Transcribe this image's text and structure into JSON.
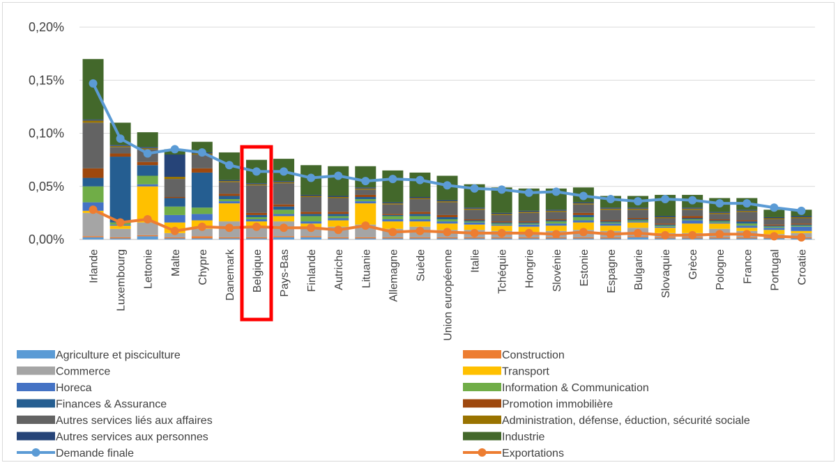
{
  "chart_data": {
    "type": "bar",
    "subtype": "stacked bar with line overlay",
    "title": "",
    "xlabel": "",
    "ylabel": "",
    "ylim": [
      0,
      0.2
    ],
    "yticks": [
      "0,00%",
      "0,05%",
      "0,10%",
      "0,15%",
      "0,20%"
    ],
    "grid": true,
    "legend_position": "bottom",
    "highlight": {
      "category": "Belgique",
      "color": "#ff0000"
    },
    "categories": [
      "Irlande",
      "Luxembourg",
      "Lettonie",
      "Malte",
      "Chypre",
      "Danemark",
      "Belgique",
      "Pays-Bas",
      "Finlande",
      "Autriche",
      "Lituanie",
      "Allemagne",
      "Suède",
      "Union européenne",
      "Italie",
      "Tchéquie",
      "Hongrie",
      "Slovénie",
      "Estonie",
      "Espagne",
      "Bulgarie",
      "Slovaquie",
      "Grèce",
      "Pologne",
      "France",
      "Portugal",
      "Croatie"
    ],
    "series": [
      {
        "name": "Agriculture et pisciculture",
        "kind": "bar",
        "color": "#5b9bd5",
        "values": [
          0.002,
          0.001,
          0.003,
          0.001,
          0.001,
          0.001,
          0.001,
          0.002,
          0.002,
          0.001,
          0.001,
          0.001,
          0.001,
          0.001,
          0.001,
          0.001,
          0.001,
          0.001,
          0.001,
          0.001,
          0.002,
          0.001,
          0.001,
          0.001,
          0.001,
          0.001,
          0.001
        ]
      },
      {
        "name": "Construction",
        "kind": "bar",
        "color": "#ed7d31",
        "values": [
          0.001,
          0.001,
          0.001,
          0.001,
          0.002,
          0.001,
          0.001,
          0.001,
          0.001,
          0.001,
          0.001,
          0.001,
          0.001,
          0.001,
          0.001,
          0.001,
          0.001,
          0.001,
          0.001,
          0.001,
          0.001,
          0.001,
          0.001,
          0.001,
          0.001,
          0.001,
          0.001
        ]
      },
      {
        "name": "Commerce",
        "kind": "bar",
        "color": "#a5a5a5",
        "values": [
          0.022,
          0.008,
          0.012,
          0.004,
          0.007,
          0.015,
          0.01,
          0.014,
          0.008,
          0.01,
          0.012,
          0.008,
          0.01,
          0.007,
          0.007,
          0.006,
          0.005,
          0.006,
          0.007,
          0.006,
          0.008,
          0.004,
          0.004,
          0.008,
          0.006,
          0.003,
          0.004
        ]
      },
      {
        "name": "Transport",
        "kind": "bar",
        "color": "#ffc000",
        "values": [
          0.002,
          0.003,
          0.034,
          0.01,
          0.008,
          0.017,
          0.005,
          0.005,
          0.004,
          0.006,
          0.02,
          0.007,
          0.005,
          0.006,
          0.005,
          0.005,
          0.005,
          0.005,
          0.007,
          0.005,
          0.005,
          0.005,
          0.009,
          0.005,
          0.003,
          0.004,
          0.002
        ]
      },
      {
        "name": "Horeca",
        "kind": "bar",
        "color": "#4472c4",
        "values": [
          0.008,
          0.001,
          0.002,
          0.007,
          0.006,
          0.002,
          0.002,
          0.002,
          0.002,
          0.002,
          0.002,
          0.002,
          0.002,
          0.002,
          0.002,
          0.001,
          0.002,
          0.002,
          0.002,
          0.002,
          0.001,
          0.001,
          0.003,
          0.001,
          0.002,
          0.002,
          0.004
        ]
      },
      {
        "name": "Information & Communication",
        "kind": "bar",
        "color": "#70ad47",
        "values": [
          0.015,
          0.002,
          0.008,
          0.008,
          0.006,
          0.002,
          0.002,
          0.004,
          0.005,
          0.002,
          0.002,
          0.003,
          0.003,
          0.002,
          0.001,
          0.001,
          0.001,
          0.002,
          0.003,
          0.001,
          0.001,
          0.001,
          0.001,
          0.001,
          0.002,
          0.001,
          0.001
        ]
      },
      {
        "name": "Finances & Assurance",
        "kind": "bar",
        "color": "#255e91",
        "values": [
          0.008,
          0.062,
          0.01,
          0.008,
          0.033,
          0.003,
          0.002,
          0.003,
          0.002,
          0.002,
          0.002,
          0.001,
          0.002,
          0.002,
          0.001,
          0.001,
          0.001,
          0.001,
          0.002,
          0.001,
          0.001,
          0.001,
          0.001,
          0.001,
          0.002,
          0.001,
          0.001
        ]
      },
      {
        "name": "Promotion immobilière",
        "kind": "bar",
        "color": "#9e480e",
        "values": [
          0.009,
          0.003,
          0.003,
          0.001,
          0.004,
          0.002,
          0.002,
          0.002,
          0.002,
          0.002,
          0.002,
          0.001,
          0.002,
          0.002,
          0.001,
          0.001,
          0.001,
          0.001,
          0.002,
          0.001,
          0.001,
          0.001,
          0.002,
          0.001,
          0.001,
          0.001,
          0.001
        ]
      },
      {
        "name": "Autres services liés aux affaires",
        "kind": "bar",
        "color": "#636363",
        "values": [
          0.043,
          0.006,
          0.012,
          0.017,
          0.013,
          0.011,
          0.026,
          0.02,
          0.014,
          0.013,
          0.005,
          0.009,
          0.012,
          0.012,
          0.009,
          0.006,
          0.008,
          0.007,
          0.008,
          0.01,
          0.008,
          0.005,
          0.006,
          0.005,
          0.008,
          0.005,
          0.005
        ]
      },
      {
        "name": "Administration, défense, éduction, sécurité sociale",
        "kind": "bar",
        "color": "#997300",
        "values": [
          0.002,
          0.001,
          0.001,
          0.002,
          0.001,
          0.001,
          0.001,
          0.001,
          0.001,
          0.001,
          0.001,
          0.001,
          0.001,
          0.001,
          0.001,
          0.001,
          0.001,
          0.001,
          0.001,
          0.001,
          0.001,
          0.001,
          0.001,
          0.001,
          0.001,
          0.001,
          0.001
        ]
      },
      {
        "name": "Autres services aux personnes",
        "kind": "bar",
        "color": "#264478",
        "values": [
          0.001,
          0.001,
          0.001,
          0.021,
          0.001,
          0.001,
          0.001,
          0.001,
          0.001,
          0.001,
          0.001,
          0.001,
          0.001,
          0.001,
          0.001,
          0.001,
          0.001,
          0.001,
          0.001,
          0.001,
          0.001,
          0.001,
          0.001,
          0.001,
          0.001,
          0.001,
          0.001
        ]
      },
      {
        "name": "Industrie",
        "kind": "bar",
        "color": "#43682b",
        "values": [
          0.057,
          0.021,
          0.014,
          0.005,
          0.01,
          0.026,
          0.022,
          0.021,
          0.028,
          0.028,
          0.02,
          0.03,
          0.023,
          0.023,
          0.022,
          0.024,
          0.021,
          0.02,
          0.014,
          0.011,
          0.011,
          0.02,
          0.012,
          0.013,
          0.011,
          0.007,
          0.006
        ]
      },
      {
        "name": "Demande finale",
        "kind": "line",
        "color": "#5b9bd5",
        "values": [
          0.147,
          0.095,
          0.081,
          0.085,
          0.082,
          0.07,
          0.064,
          0.064,
          0.058,
          0.06,
          0.055,
          0.057,
          0.056,
          0.051,
          0.048,
          0.047,
          0.044,
          0.045,
          0.041,
          0.038,
          0.036,
          0.038,
          0.037,
          0.034,
          0.034,
          0.03,
          0.027
        ]
      },
      {
        "name": "Exportations",
        "kind": "line",
        "color": "#ed7d31",
        "values": [
          0.028,
          0.016,
          0.019,
          0.008,
          0.012,
          0.011,
          0.012,
          0.011,
          0.011,
          0.009,
          0.013,
          0.007,
          0.008,
          0.007,
          0.006,
          0.006,
          0.006,
          0.005,
          0.007,
          0.005,
          0.006,
          0.004,
          0.004,
          0.005,
          0.005,
          0.003,
          0.002
        ]
      }
    ]
  }
}
